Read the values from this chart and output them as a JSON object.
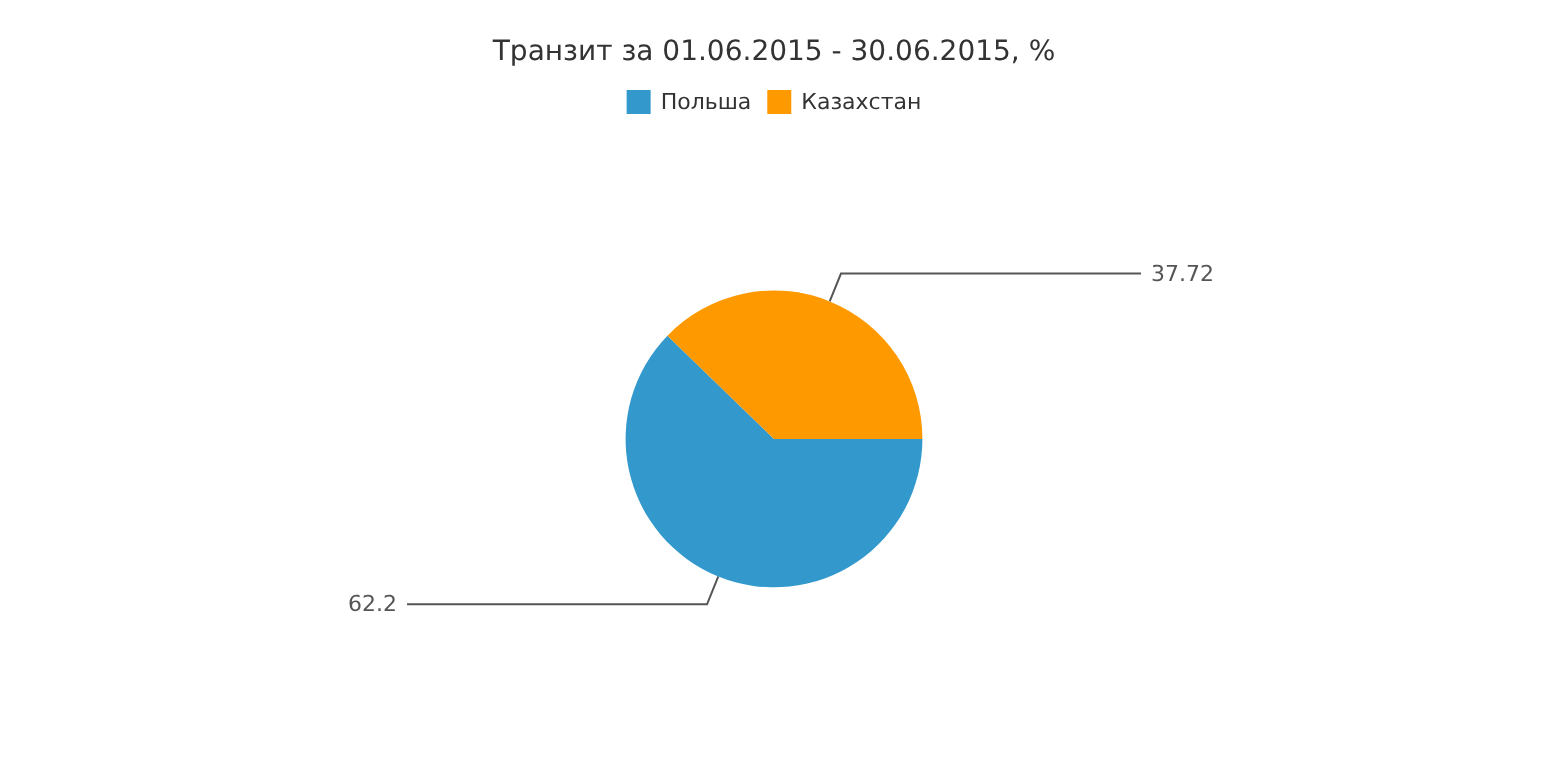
{
  "chart_data": {
    "type": "pie",
    "title": "Транзит за 01.06.2015 - 30.06.2015, %",
    "categories": [
      "Польша",
      "Казахстан"
    ],
    "values": [
      62.2,
      37.72
    ],
    "colors": [
      "#3399cc",
      "#ff9900"
    ],
    "legend": "top",
    "data_labels": true
  }
}
